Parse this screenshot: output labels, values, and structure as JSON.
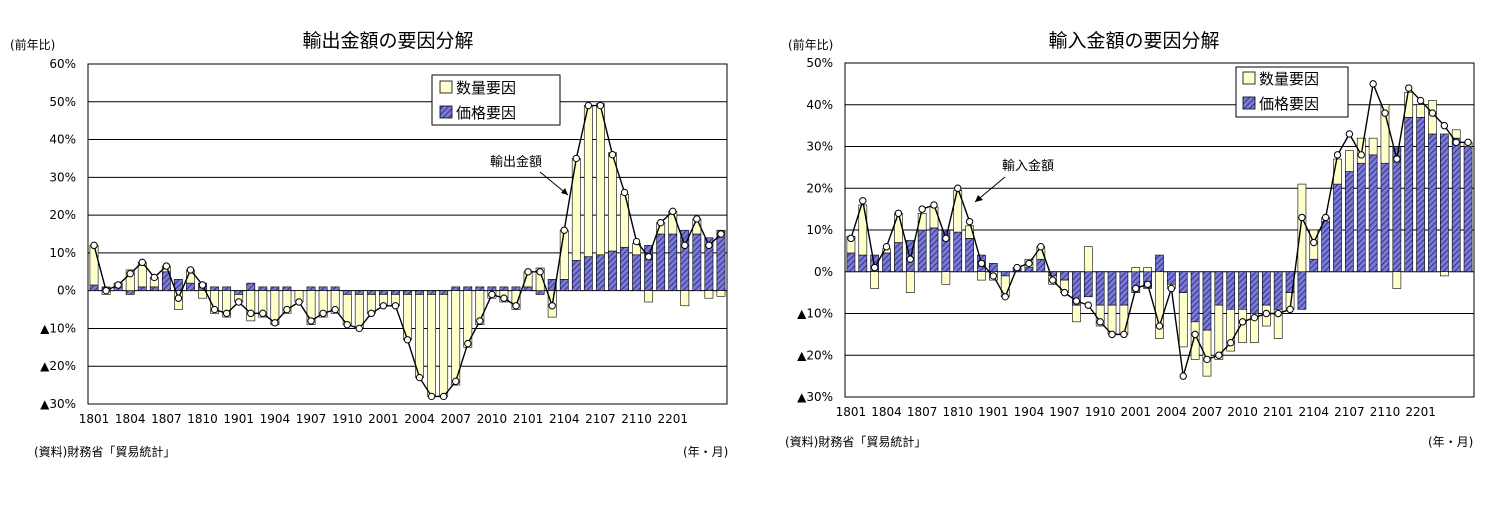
{
  "colors": {
    "quantity_fill": "#ffffcc",
    "price_fill": "#7b7bd0",
    "price_hatch": "#1f1f8f",
    "line": "#000000",
    "gridline": "#000000"
  },
  "chart_data": [
    {
      "type": "bar",
      "title": "輸出金額の要因分解",
      "ylabel": "(前年比)",
      "source": "(資料)財務省「貿易統計」",
      "xunit": "(年・月)",
      "line_label": "輸出金額",
      "legend": {
        "placement": "top-right",
        "items": [
          "数量要因",
          "価格要因"
        ]
      },
      "ylim": [
        -30,
        60
      ],
      "grid": true,
      "yticks": [
        60,
        50,
        40,
        30,
        20,
        10,
        0,
        -10,
        -20,
        -30
      ],
      "ytick_labels": [
        "60%",
        "50%",
        "40%",
        "30%",
        "20%",
        "10%",
        "0%",
        "▲10%",
        "▲20%",
        "▲30%"
      ],
      "xtick_labels": [
        "1801",
        "1804",
        "1807",
        "1810",
        "1901",
        "1904",
        "1907",
        "1910",
        "2001",
        "2004",
        "2007",
        "2010",
        "2101",
        "2104",
        "2107",
        "2110",
        "2201"
      ],
      "categories": [
        "1801",
        "1802",
        "1803",
        "1804",
        "1805",
        "1806",
        "1807",
        "1808",
        "1809",
        "1810",
        "1811",
        "1812",
        "1901",
        "1902",
        "1903",
        "1904",
        "1905",
        "1906",
        "1907",
        "1908",
        "1909",
        "1910",
        "1911",
        "1912",
        "2001",
        "2002",
        "2003",
        "2004",
        "2005",
        "2006",
        "2007",
        "2008",
        "2009",
        "2010",
        "2011",
        "2012",
        "2101",
        "2102",
        "2103",
        "2104",
        "2105",
        "2106",
        "2107",
        "2108",
        "2109",
        "2110",
        "2111",
        "2112",
        "2201",
        "2202",
        "2203",
        "2204",
        "2205"
      ],
      "series": [
        {
          "name": "数量要因",
          "values": [
            10.5,
            -1,
            1,
            5.5,
            6.5,
            2.5,
            1.5,
            -5,
            3.5,
            -2,
            -6,
            -7,
            -2,
            -8,
            -7,
            -9,
            -6,
            -3,
            -9,
            -7,
            -6,
            -8,
            -9,
            -5,
            -3,
            -3,
            -12,
            -22,
            -27,
            -27,
            -25,
            -15,
            -9,
            -2,
            -3,
            -5,
            4,
            6,
            -7,
            13,
            27,
            40,
            40,
            26,
            14,
            3,
            -3,
            3,
            6,
            -4,
            4,
            -2,
            -1.5
          ]
        },
        {
          "name": "価格要因",
          "values": [
            1.5,
            1,
            1,
            -1,
            1,
            1,
            5,
            3,
            2,
            2,
            1,
            1,
            -1,
            2,
            1,
            1,
            1,
            0,
            1,
            1,
            1,
            -1,
            -1,
            -1,
            -1,
            -1,
            -1,
            -1,
            -1,
            -1,
            1,
            1,
            1,
            1,
            1,
            1,
            1,
            -1,
            3,
            3,
            8,
            9,
            9.5,
            10.5,
            11.5,
            9.5,
            12,
            15,
            15,
            16,
            15,
            14,
            16
          ]
        },
        {
          "name": "輸出金額",
          "values": [
            12,
            0,
            1.5,
            4.5,
            7.5,
            3.5,
            6.5,
            -2,
            5.5,
            1.5,
            -5,
            -6,
            -3,
            -6,
            -6,
            -8.5,
            -5,
            -3,
            -8,
            -6,
            -5,
            -9,
            -10,
            -6,
            -4,
            -4,
            -13,
            -23,
            -28,
            -28,
            -24,
            -14,
            -8,
            -1,
            -2,
            -4,
            5,
            5,
            -4,
            16,
            35,
            49,
            49,
            36,
            26,
            13,
            9,
            18,
            21,
            12,
            19,
            12,
            15
          ]
        }
      ]
    },
    {
      "type": "bar",
      "title": "輸入金額の要因分解",
      "ylabel": "(前年比)",
      "source": "(資料)財務省「貿易統計」",
      "xunit": "(年・月)",
      "line_label": "輸入金額",
      "legend": {
        "placement": "top-right",
        "items": [
          "数量要因",
          "価格要因"
        ]
      },
      "ylim": [
        -30,
        50
      ],
      "grid": true,
      "yticks": [
        50,
        40,
        30,
        20,
        10,
        0,
        -10,
        -20,
        -30
      ],
      "ytick_labels": [
        "50%",
        "40%",
        "30%",
        "20%",
        "10%",
        "0%",
        "▲10%",
        "▲20%",
        "▲30%"
      ],
      "xtick_labels": [
        "1801",
        "1804",
        "1807",
        "1810",
        "1901",
        "1904",
        "1907",
        "1910",
        "2001",
        "2004",
        "2007",
        "2010",
        "2101",
        "2104",
        "2107",
        "2110",
        "2201"
      ],
      "categories": [
        "1801",
        "1802",
        "1803",
        "1804",
        "1805",
        "1806",
        "1807",
        "1808",
        "1809",
        "1810",
        "1811",
        "1812",
        "1901",
        "1902",
        "1903",
        "1904",
        "1905",
        "1906",
        "1907",
        "1908",
        "1909",
        "1910",
        "1911",
        "1912",
        "2001",
        "2002",
        "2003",
        "2004",
        "2005",
        "2006",
        "2007",
        "2008",
        "2009",
        "2010",
        "2011",
        "2012",
        "2101",
        "2102",
        "2103",
        "2104",
        "2105",
        "2106",
        "2107",
        "2108",
        "2109",
        "2110",
        "2111",
        "2112",
        "2201",
        "2202",
        "2203",
        "2204",
        "2205"
      ],
      "series": [
        {
          "name": "数量要因",
          "values": [
            4,
            12,
            -4,
            1,
            7,
            -5,
            4,
            5,
            -3,
            10,
            3,
            -2,
            -2,
            -5,
            0,
            2,
            3,
            -2,
            -3,
            -4,
            6,
            -5,
            -7,
            -7,
            1,
            1,
            -16,
            -1,
            -13,
            -9,
            -11,
            -13,
            -10,
            -8,
            -7,
            -5,
            -7,
            -4,
            21,
            7,
            1,
            6,
            5,
            6,
            4,
            14,
            -4,
            6,
            3,
            8,
            -1,
            2,
            1
          ]
        },
        {
          "name": "価格要因",
          "values": [
            4.5,
            4,
            4,
            4.5,
            7,
            7.5,
            10,
            10.5,
            10,
            9.5,
            8,
            4,
            2,
            -1,
            1,
            1,
            3,
            -1,
            -2,
            -8,
            -6,
            -8,
            -8,
            -8,
            -5,
            -4,
            4,
            -3,
            -5,
            -12,
            -14,
            -8,
            -9,
            -9,
            -10,
            -8,
            -9,
            -5,
            -9,
            3,
            12,
            21,
            24,
            26,
            28,
            26,
            30,
            37,
            37,
            33,
            33,
            32,
            30
          ]
        },
        {
          "name": "輸入金額",
          "values": [
            8,
            17,
            1,
            6,
            14,
            3,
            15,
            16,
            8,
            20,
            12,
            2,
            -1,
            -6,
            1,
            2,
            6,
            -2,
            -5,
            -7,
            -8,
            -12,
            -15,
            -15,
            -4,
            -3,
            -13,
            -4,
            -25,
            -15,
            -21,
            -20,
            -17,
            -12,
            -11,
            -10,
            -10,
            -9,
            13,
            7,
            13,
            28,
            33,
            28,
            45,
            38,
            27,
            44,
            41,
            38,
            35,
            31,
            31
          ]
        }
      ]
    }
  ]
}
